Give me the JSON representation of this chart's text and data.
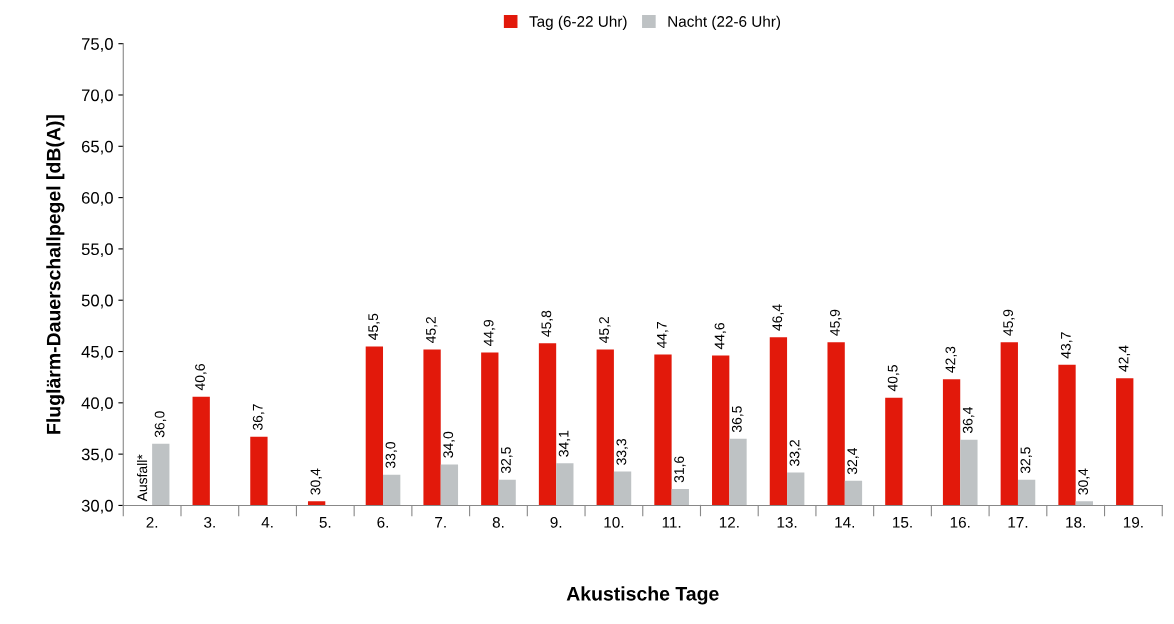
{
  "chart_data": {
    "type": "bar",
    "xlabel": "Akustische Tage",
    "ylabel": "Fluglärm-Dauerschallpegel [dB(A)]",
    "categories": [
      "2.",
      "3.",
      "4.",
      "5.",
      "6.",
      "7.",
      "8.",
      "9.",
      "10.",
      "11.",
      "12.",
      "13.",
      "14.",
      "15.",
      "16.",
      "17.",
      "18.",
      "19."
    ],
    "series": [
      {
        "name": "Tag (6-22 Uhr)",
        "color": "#e2190b",
        "values": [
          null,
          40.6,
          36.7,
          30.4,
          45.5,
          45.2,
          44.9,
          45.8,
          45.2,
          44.7,
          44.6,
          46.4,
          45.9,
          40.5,
          42.3,
          45.9,
          43.7,
          42.4
        ],
        "value_labels": [
          null,
          "40,6",
          "36,7",
          "30,4",
          "45,5",
          "45,2",
          "44,9",
          "45,8",
          "45,2",
          "44,7",
          "44,6",
          "46,4",
          "45,9",
          "40,5",
          "42,3",
          "45,9",
          "43,7",
          "42,4"
        ]
      },
      {
        "name": "Nacht (22-6 Uhr)",
        "color": "#bec2c4",
        "values": [
          36.0,
          null,
          null,
          null,
          33.0,
          34.0,
          32.5,
          34.1,
          33.3,
          31.6,
          36.5,
          33.2,
          32.4,
          null,
          36.4,
          32.5,
          30.4,
          null
        ],
        "value_labels": [
          "36,0",
          null,
          null,
          null,
          "33,0",
          "34,0",
          "32,5",
          "34,1",
          "33,3",
          "31,6",
          "36,5",
          "33,2",
          "32,4",
          null,
          "36,4",
          "32,5",
          "30,4",
          null
        ]
      }
    ],
    "annotations": [
      {
        "text": "Ausfall*",
        "x": "2."
      }
    ],
    "ylim": [
      30,
      75
    ],
    "yticks": [
      {
        "value": 30,
        "label": "30,0"
      },
      {
        "value": 35,
        "label": "35,0"
      },
      {
        "value": 40,
        "label": "40,0"
      },
      {
        "value": 45,
        "label": "45,0"
      },
      {
        "value": 50,
        "label": "50,0"
      },
      {
        "value": 55,
        "label": "55,0"
      },
      {
        "value": 60,
        "label": "60,0"
      },
      {
        "value": 65,
        "label": "65,0"
      },
      {
        "value": 70,
        "label": "70,0"
      },
      {
        "value": 75,
        "label": "75,0"
      }
    ],
    "legend": "top",
    "grid": false
  }
}
